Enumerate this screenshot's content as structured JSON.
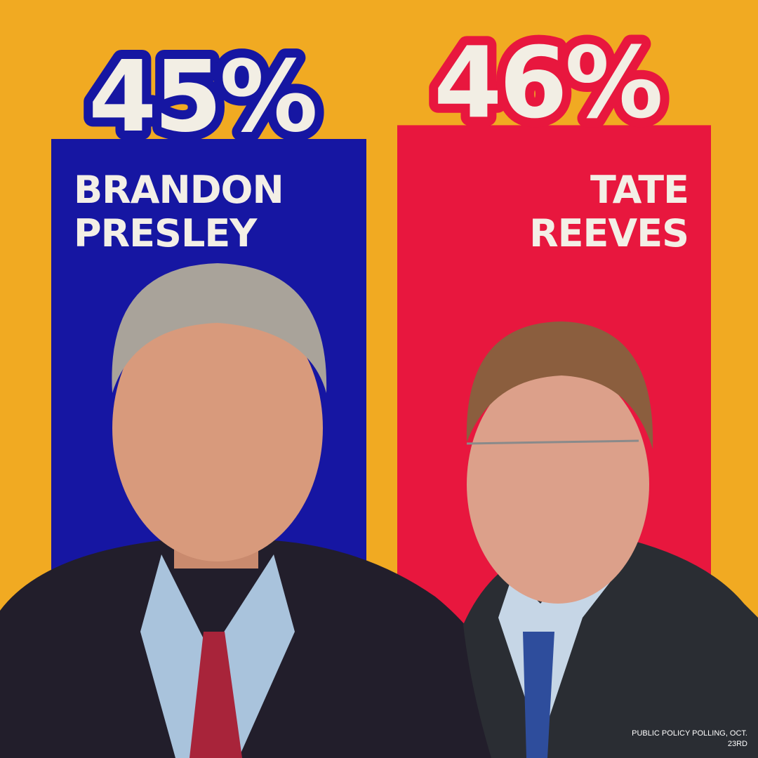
{
  "chart_data": {
    "type": "bar",
    "categories": [
      "BRANDON PRESLEY",
      "TATE REEVES"
    ],
    "values": [
      45,
      46
    ],
    "value_labels": [
      "45%",
      "46%"
    ],
    "colors": [
      "#1616a2",
      "#e8173e"
    ],
    "source": "PUBLIC POLICY POLLING, OCT. 23RD"
  }
}
